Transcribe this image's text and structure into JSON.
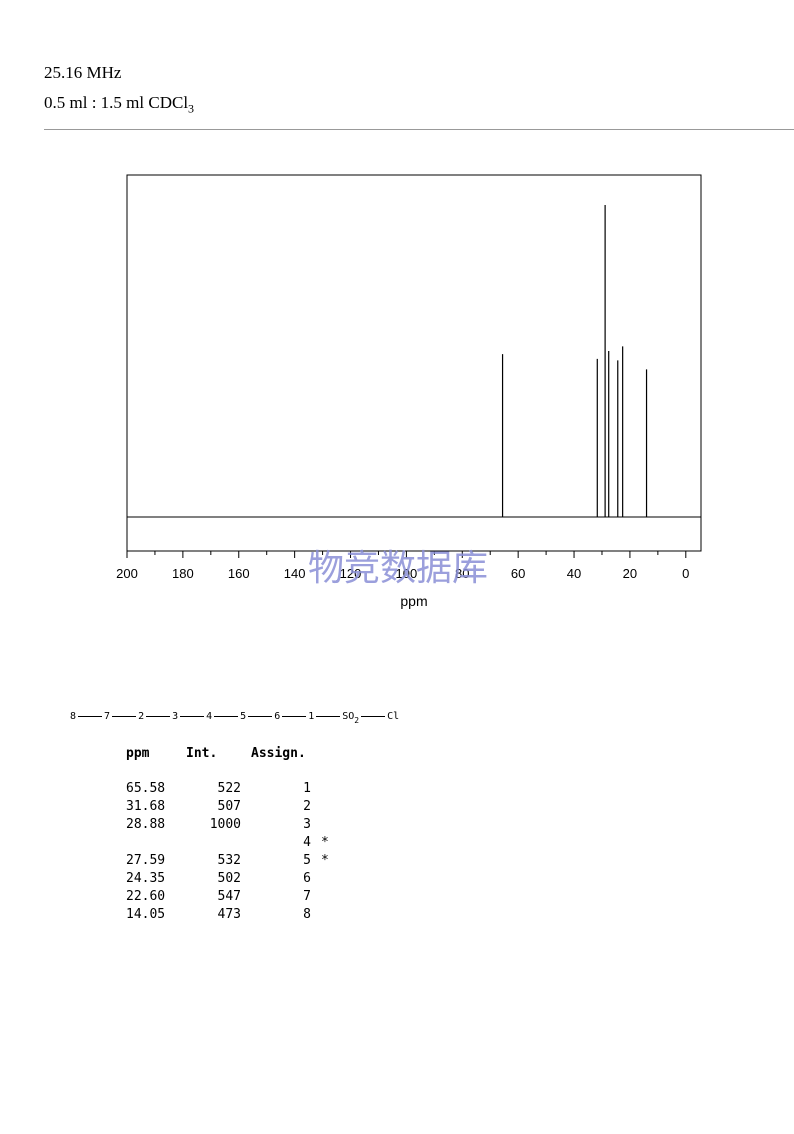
{
  "header": {
    "frequency": "25.16 MHz",
    "solvent_prefix": "0.5 ml : 1.5 ml CDCl",
    "solvent_sub": "3"
  },
  "watermark": "物竞数据库",
  "chart_data": {
    "type": "line",
    "title": "",
    "xlabel": "ppm",
    "ylabel": "",
    "xlim": [
      200,
      -5
    ],
    "x_reversed": true,
    "ylim": [
      0,
      1000
    ],
    "grid": false,
    "tick_labels": [
      "200",
      "180",
      "160",
      "140",
      "120",
      "100",
      "80",
      "60",
      "40",
      "20",
      "0"
    ],
    "tick_values": [
      200,
      180,
      160,
      140,
      120,
      100,
      80,
      60,
      40,
      20,
      0
    ],
    "peaks": [
      {
        "ppm": 65.58,
        "intensity": 522
      },
      {
        "ppm": 31.68,
        "intensity": 507
      },
      {
        "ppm": 28.88,
        "intensity": 1000
      },
      {
        "ppm": 27.59,
        "intensity": 532
      },
      {
        "ppm": 24.35,
        "intensity": 502
      },
      {
        "ppm": 22.6,
        "intensity": 547
      },
      {
        "ppm": 14.05,
        "intensity": 473
      }
    ]
  },
  "structure": {
    "atoms": [
      "8",
      "7",
      "2",
      "3",
      "4",
      "5",
      "6",
      "1",
      "SO",
      "Cl"
    ],
    "so_sub": "2"
  },
  "table": {
    "headers": {
      "ppm": "ppm",
      "int": "Int.",
      "assign": "Assign."
    },
    "rows": [
      {
        "ppm": "65.58",
        "int": "522",
        "assign": "1",
        "star": ""
      },
      {
        "ppm": "31.68",
        "int": "507",
        "assign": "2",
        "star": ""
      },
      {
        "ppm": "28.88",
        "int": "1000",
        "assign": "3",
        "star": ""
      },
      {
        "ppm": "",
        "int": "",
        "assign": "4",
        "star": "*"
      },
      {
        "ppm": "27.59",
        "int": "532",
        "assign": "5",
        "star": "*"
      },
      {
        "ppm": "24.35",
        "int": "502",
        "assign": "6",
        "star": ""
      },
      {
        "ppm": "22.60",
        "int": "547",
        "assign": "7",
        "star": ""
      },
      {
        "ppm": "14.05",
        "int": "473",
        "assign": "8",
        "star": ""
      }
    ]
  }
}
